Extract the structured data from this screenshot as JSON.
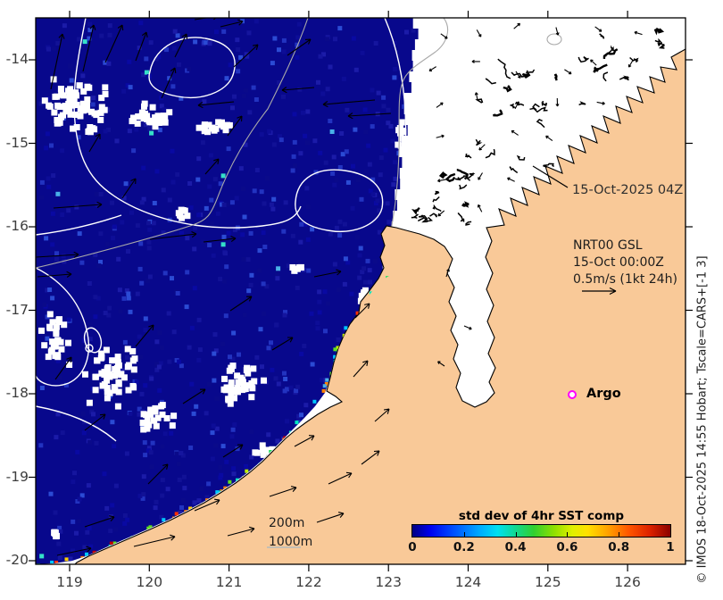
{
  "figure": {
    "date_stamp": "15-Oct-2025 04Z",
    "velocity_legend": {
      "line1": "NRT00 GSL",
      "line2": "15-Oct 00:00Z",
      "line3": "0.5m/s (1kt 24h)"
    },
    "argo": {
      "label": "Argo"
    },
    "depth_contour_labels": {
      "d200": "200m",
      "d1000": "1000m"
    },
    "copyright": "© IMOS 18-Oct-2025 14:55 Hobart; Tscale=CARS+[-1 3]"
  },
  "axes": {
    "x_tick_labels": [
      "119",
      "120",
      "121",
      "122",
      "123",
      "124",
      "125",
      "126"
    ],
    "y_tick_labels": [
      "-14",
      "-15",
      "-16",
      "-17",
      "-18",
      "-19",
      "-20"
    ]
  },
  "colorbar": {
    "title": "std dev of 4hr SST comp",
    "tick_labels": [
      "0",
      "0.2",
      "0.4",
      "0.6",
      "0.8",
      "1"
    ],
    "range": [
      0,
      1
    ]
  },
  "colors": {
    "land": "#F9C998",
    "ocean_swath": "#08088C",
    "no_data_ocean": "#FFFFFF",
    "argo_marker": "#FF00FF",
    "ssh_contour": "#FFFFFF",
    "bathy_contour": "#A9A9A9",
    "coastline": "#000000",
    "jet_gradient": [
      "#000083",
      "#0000F0",
      "#0050FF",
      "#00AAFF",
      "#00E0F0",
      "#10D890",
      "#30D030",
      "#90E000",
      "#E0F000",
      "#FFE000",
      "#FFA000",
      "#FF5500",
      "#DD2200",
      "#8B0000"
    ]
  }
}
